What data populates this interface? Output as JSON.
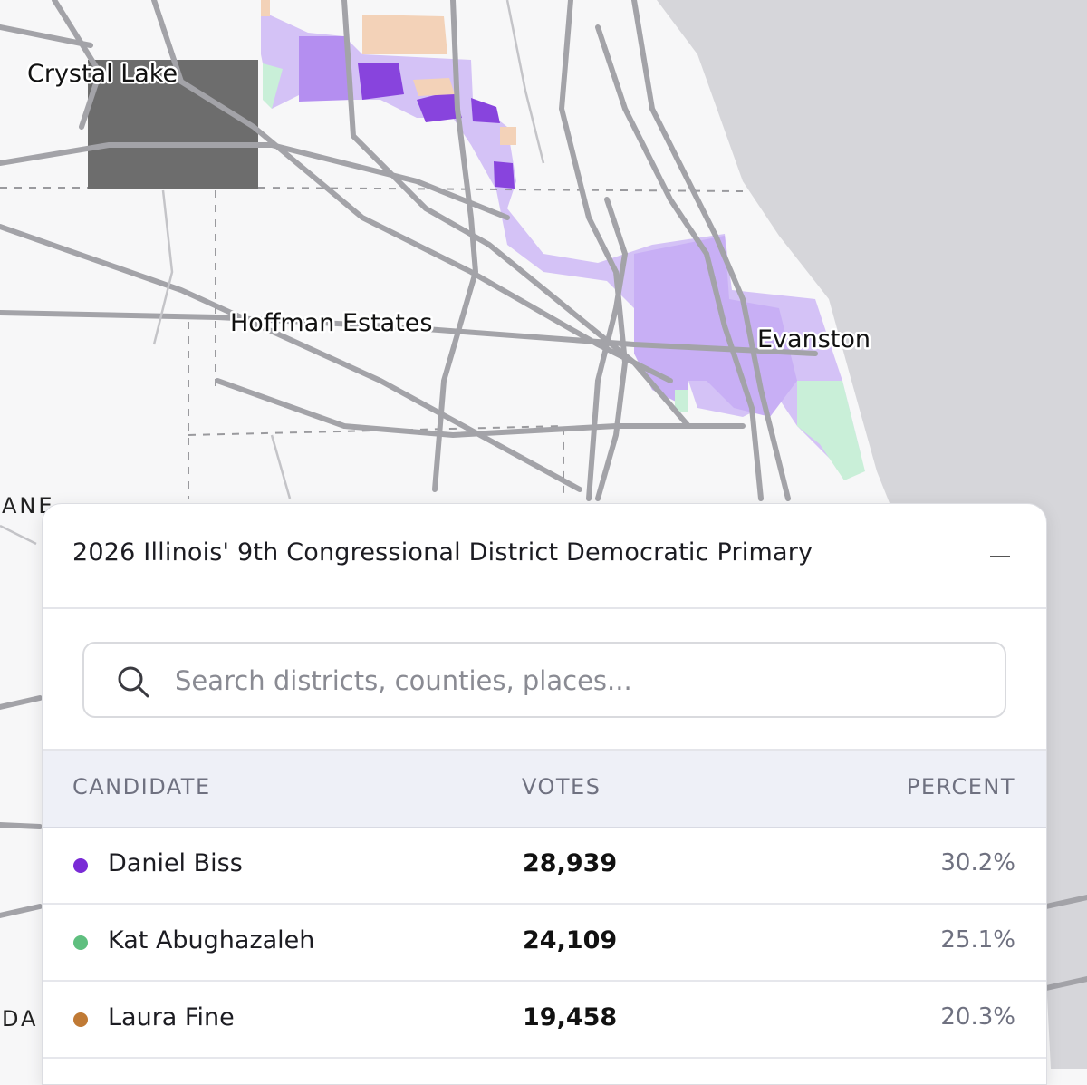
{
  "map": {
    "labels": {
      "crystal_lake": "Crystal Lake",
      "hoffman_estates": "Hoffman Estates",
      "evanston": "Evanston",
      "edge_ane": "ANE",
      "edge_da": "DA"
    },
    "colors": {
      "land": "#f7f7f8",
      "water": "#d6d6da",
      "road": "#9b9b9f",
      "biss_light": "#d4c2f6",
      "biss_mid": "#b48ef0",
      "biss_dark": "#8844dd",
      "abughazaleh_light": "#c9efd8",
      "fine_light": "#f3d2b8",
      "no_data": "#6d6d6d"
    }
  },
  "panel": {
    "title": "2026 Illinois' 9th Congressional District Democratic Primary",
    "search_placeholder": "Search districts, counties, places...",
    "columns": {
      "candidate": "CANDIDATE",
      "votes": "VOTES",
      "percent": "PERCENT"
    },
    "candidates": [
      {
        "name": "Daniel Biss",
        "votes": "28,939",
        "percent": "30.2%",
        "color": "#7a2bd6"
      },
      {
        "name": "Kat Abughazaleh",
        "votes": "24,109",
        "percent": "25.1%",
        "color": "#5fbf7f"
      },
      {
        "name": "Laura Fine",
        "votes": "19,458",
        "percent": "20.3%",
        "color": "#c07a35"
      }
    ]
  }
}
